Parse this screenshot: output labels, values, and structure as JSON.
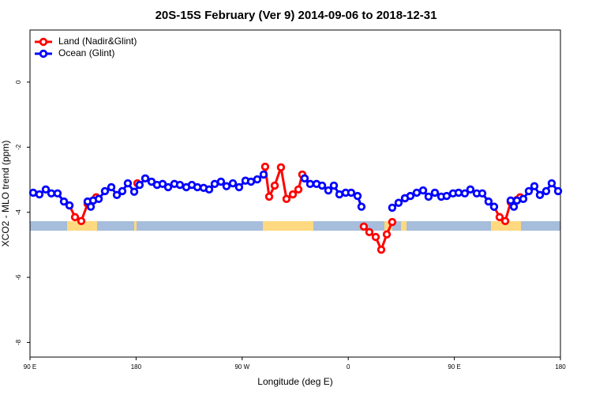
{
  "chart_data": {
    "type": "line",
    "title": "20S-15S February (Ver 9)   2014-09-06 to 2018-12-31",
    "x_label": "Longitude (deg E)",
    "y_label": "XCO2 - MLO trend (ppm)",
    "xlim": [
      90,
      540
    ],
    "ylim": [
      -8.45,
      1.6
    ],
    "xticks": [
      {
        "value": 90,
        "label": "90 E"
      },
      180,
      {
        "value": 270,
        "label": "90 W"
      },
      {
        "value": 360,
        "label": "0"
      },
      {
        "value": 450,
        "label": "90 E"
      },
      {
        "value": 540,
        "label": "180"
      }
    ],
    "yticks": [
      0,
      -2,
      -4,
      -6,
      -8
    ],
    "legend": "top-left",
    "series": [
      {
        "name": "Land (Nadir&Glint)",
        "color": "#ff0000",
        "x": [
          123.5,
          128.2,
          133.5,
          138.9,
          143.6,
          146.2,
          null,
          181.1,
          null,
          289.5,
          292.9,
          297.6,
          302.9,
          307.6,
          313.0,
          317.7,
          321.0,
          323.0,
          null,
          373.2,
          377.9,
          383.3,
          388.0,
          392.7,
          397.3,
          null,
          408.1,
          null,
          483.7,
          488.4,
          493.2,
          497.8,
          503.1,
          505.8
        ],
        "values": [
          -3.79,
          -4.15,
          -4.27,
          -3.74,
          -3.64,
          -3.54,
          null,
          -3.11,
          null,
          -2.6,
          -3.52,
          -3.18,
          -2.62,
          -3.59,
          -3.45,
          -3.3,
          -2.84,
          -2.96,
          null,
          -4.44,
          -4.61,
          -4.76,
          -5.15,
          -4.68,
          -4.3,
          null,
          -3.57,
          null,
          -3.83,
          -4.15,
          -4.27,
          -3.69,
          -3.62,
          -3.54
        ]
      },
      {
        "name": "Ocean (Glint)",
        "color": "#0000ff",
        "x": [
          92.7,
          98.0,
          103.4,
          108.1,
          113.4,
          118.8,
          123.5,
          null,
          138.9,
          141.6,
          143.6,
          148.3,
          153.6,
          159.0,
          163.7,
          168.3,
          173.0,
          178.4,
          183.0,
          187.8,
          193.1,
          197.8,
          202.5,
          207.2,
          212.5,
          217.2,
          222.6,
          227.3,
          232.0,
          237.3,
          242.0,
          246.7,
          252.0,
          256.7,
          262.1,
          267.4,
          272.8,
          277.5,
          282.8,
          288.2,
          null,
          323.0,
          327.7,
          333.1,
          337.8,
          343.1,
          347.8,
          352.5,
          357.8,
          362.5,
          367.9,
          371.2,
          null,
          397.3,
          402.7,
          408.1,
          412.7,
          418.1,
          423.5,
          428.1,
          433.5,
          438.9,
          443.5,
          448.9,
          453.6,
          458.9,
          463.6,
          469.0,
          473.7,
          479.0,
          483.7,
          null,
          497.8,
          500.5,
          503.1,
          508.5,
          513.2,
          517.9,
          522.6,
          527.9,
          532.6,
          538.0
        ],
        "values": [
          -3.4,
          -3.45,
          -3.3,
          -3.42,
          -3.42,
          -3.67,
          -3.79,
          null,
          -3.67,
          -3.83,
          -3.64,
          -3.59,
          -3.35,
          -3.23,
          -3.47,
          -3.35,
          -3.11,
          -3.37,
          -3.16,
          -2.96,
          -3.06,
          -3.16,
          -3.13,
          -3.23,
          -3.13,
          -3.16,
          -3.23,
          -3.16,
          -3.23,
          -3.25,
          -3.3,
          -3.13,
          -3.06,
          -3.2,
          -3.11,
          -3.23,
          -3.03,
          -3.06,
          -2.99,
          -2.84,
          null,
          -2.96,
          -3.13,
          -3.13,
          -3.18,
          -3.33,
          -3.18,
          -3.45,
          -3.4,
          -3.4,
          -3.5,
          -3.83,
          null,
          -3.86,
          -3.71,
          -3.57,
          -3.5,
          -3.4,
          -3.33,
          -3.52,
          -3.4,
          -3.52,
          -3.5,
          -3.42,
          -3.4,
          -3.42,
          -3.3,
          -3.42,
          -3.42,
          -3.67,
          -3.83,
          null,
          -3.64,
          -3.83,
          -3.64,
          -3.59,
          -3.35,
          -3.2,
          -3.47,
          -3.35,
          -3.11,
          -3.35
        ]
      }
    ]
  }
}
